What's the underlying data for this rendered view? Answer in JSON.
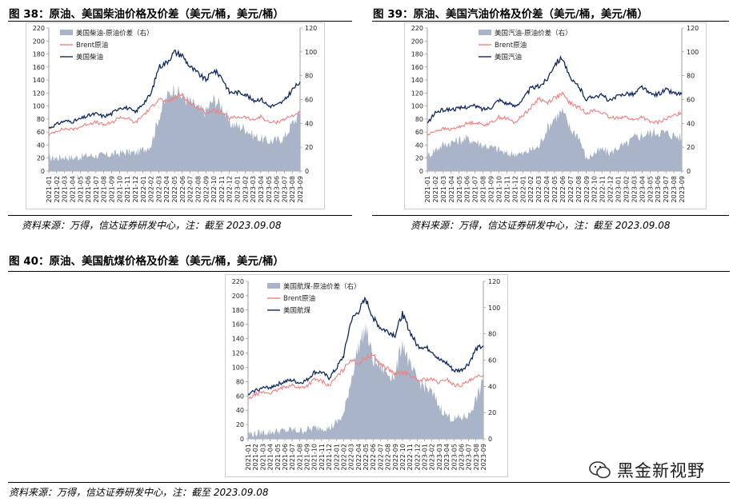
{
  "figures": [
    {
      "title": "图 38：原油、美国柴油价格及价差（美元/桶，美元/桶）",
      "source": "资料来源：万得，信达证券研发中心，注：截至 2023.09.08"
    },
    {
      "title": "图 39：原油、美国汽油价格及价差（美元/桶，美元/桶）",
      "source": "资料来源：万得，信达证券研发中心，注：截至 2023.09.08"
    },
    {
      "title": "图 40：原油、美国航煤价格及价差（美元/桶，美元/桶）",
      "source": "资料来源：万得，信达证券研发中心，注：截至 2023.09.08"
    }
  ],
  "watermark": "黑金新视野",
  "colors": {
    "spread": "#a9b4c8",
    "brent": "#f08080",
    "product": "#102a5e"
  },
  "chart_data": [
    {
      "type": "line",
      "categories": [
        "2021-01",
        "2021-02",
        "2021-03",
        "2021-04",
        "2021-05",
        "2021-06",
        "2021-07",
        "2021-08",
        "2021-09",
        "2021-10",
        "2021-11",
        "2021-12",
        "2022-01",
        "2022-02",
        "2022-03",
        "2022-04",
        "2022-05",
        "2022-06",
        "2022-07",
        "2022-08",
        "2022-09",
        "2022-10",
        "2022-11",
        "2022-12",
        "2023-01",
        "2023-02",
        "2023-03",
        "2023-04",
        "2023-05",
        "2023-06",
        "2023-07",
        "2023-08",
        "2023-09"
      ],
      "ylim": [
        0,
        220
      ],
      "yticks": [
        0,
        20,
        40,
        60,
        80,
        100,
        120,
        140,
        160,
        180,
        200,
        220
      ],
      "y2lim": [
        0,
        120
      ],
      "y2ticks": [
        0,
        20,
        40,
        60,
        80,
        100,
        120
      ],
      "series": [
        {
          "name": "美国柴油-原油价差（右）",
          "kind": "area",
          "axis": "right",
          "values": [
            11,
            11,
            12,
            11,
            12,
            13,
            13,
            13,
            14,
            15,
            16,
            15,
            18,
            22,
            45,
            62,
            70,
            62,
            58,
            52,
            50,
            60,
            55,
            40,
            38,
            36,
            30,
            27,
            25,
            26,
            28,
            40,
            48
          ]
        },
        {
          "name": "Brent原油",
          "kind": "line",
          "axis": "left",
          "values": [
            55,
            62,
            65,
            64,
            68,
            73,
            75,
            71,
            74,
            83,
            81,
            74,
            86,
            97,
            112,
            105,
            113,
            118,
            104,
            98,
            90,
            93,
            90,
            81,
            83,
            83,
            78,
            84,
            75,
            75,
            80,
            85,
            90
          ]
        },
        {
          "name": "美国柴油",
          "kind": "line",
          "axis": "left",
          "values": [
            66,
            72,
            77,
            76,
            80,
            85,
            88,
            84,
            88,
            98,
            97,
            90,
            104,
            118,
            160,
            167,
            183,
            178,
            160,
            150,
            140,
            155,
            145,
            121,
            121,
            119,
            108,
            111,
            100,
            101,
            108,
            125,
            137
          ]
        }
      ]
    },
    {
      "type": "line",
      "categories": [
        "2021-01",
        "2021-02",
        "2021-03",
        "2021-04",
        "2021-05",
        "2021-06",
        "2021-07",
        "2021-08",
        "2021-09",
        "2021-10",
        "2021-11",
        "2021-12",
        "2022-01",
        "2022-02",
        "2022-03",
        "2022-04",
        "2022-05",
        "2022-06",
        "2022-07",
        "2022-08",
        "2022-09",
        "2022-10",
        "2022-11",
        "2022-12",
        "2023-01",
        "2023-02",
        "2023-03",
        "2023-04",
        "2023-05",
        "2023-06",
        "2023-07",
        "2023-08",
        "2023-09"
      ],
      "ylim": [
        0,
        220
      ],
      "yticks": [
        0,
        20,
        40,
        60,
        80,
        100,
        120,
        140,
        160,
        180,
        200,
        220
      ],
      "y2lim": [
        0,
        120
      ],
      "y2ticks": [
        0,
        20,
        40,
        60,
        80,
        100,
        120
      ],
      "series": [
        {
          "name": "美国汽油-原油价差（右）",
          "kind": "area",
          "axis": "right",
          "values": [
            12,
            18,
            22,
            24,
            26,
            27,
            25,
            22,
            20,
            18,
            14,
            15,
            14,
            18,
            20,
            35,
            45,
            50,
            35,
            30,
            10,
            15,
            18,
            15,
            20,
            22,
            28,
            30,
            32,
            33,
            32,
            30,
            28
          ]
        },
        {
          "name": "Brent原油",
          "kind": "line",
          "axis": "left",
          "values": [
            55,
            62,
            65,
            64,
            68,
            73,
            75,
            71,
            74,
            83,
            81,
            74,
            86,
            97,
            112,
            105,
            113,
            118,
            104,
            98,
            90,
            93,
            90,
            81,
            83,
            83,
            78,
            84,
            75,
            75,
            80,
            85,
            90
          ]
        },
        {
          "name": "美国汽油",
          "kind": "line",
          "axis": "left",
          "values": [
            73,
            90,
            94,
            95,
            96,
            99,
            100,
            95,
            98,
            110,
            104,
            100,
            110,
            127,
            130,
            140,
            165,
            175,
            140,
            131,
            110,
            116,
            116,
            108,
            115,
            120,
            118,
            130,
            118,
            118,
            125,
            120,
            118
          ]
        }
      ]
    },
    {
      "type": "line",
      "categories": [
        "2021-01",
        "2021-02",
        "2021-03",
        "2021-04",
        "2021-05",
        "2021-06",
        "2021-07",
        "2021-08",
        "2021-09",
        "2021-10",
        "2021-11",
        "2021-12",
        "2022-01",
        "2022-02",
        "2022-03",
        "2022-04",
        "2022-05",
        "2022-06",
        "2022-07",
        "2022-08",
        "2022-09",
        "2022-10",
        "2022-11",
        "2022-12",
        "2023-01",
        "2023-02",
        "2023-03",
        "2023-04",
        "2023-05",
        "2023-06",
        "2023-07",
        "2023-08",
        "2023-09"
      ],
      "ylim": [
        0,
        220
      ],
      "yticks": [
        0,
        20,
        40,
        60,
        80,
        100,
        120,
        140,
        160,
        180,
        200,
        220
      ],
      "y2lim": [
        0,
        120
      ],
      "y2ticks": [
        0,
        20,
        40,
        60,
        80,
        100,
        120
      ],
      "series": [
        {
          "name": "美国航煤-原油价差（右）",
          "kind": "area",
          "axis": "right",
          "values": [
            4,
            4,
            5,
            5,
            6,
            6,
            7,
            6,
            7,
            8,
            9,
            8,
            12,
            18,
            45,
            70,
            85,
            60,
            55,
            50,
            48,
            75,
            55,
            45,
            40,
            35,
            25,
            18,
            15,
            16,
            18,
            30,
            44
          ]
        },
        {
          "name": "Brent原油",
          "kind": "line",
          "axis": "left",
          "values": [
            55,
            62,
            65,
            64,
            68,
            73,
            75,
            71,
            74,
            83,
            81,
            74,
            86,
            97,
            112,
            105,
            113,
            118,
            104,
            98,
            90,
            93,
            90,
            81,
            83,
            83,
            78,
            84,
            75,
            75,
            80,
            85,
            90
          ]
        },
        {
          "name": "美国航煤",
          "kind": "line",
          "axis": "left",
          "values": [
            61,
            68,
            71,
            72,
            76,
            80,
            82,
            78,
            82,
            93,
            93,
            85,
            98,
            116,
            165,
            178,
            195,
            170,
            155,
            150,
            145,
            175,
            150,
            130,
            128,
            123,
            110,
            106,
            95,
            96,
            105,
            125,
            130
          ]
        }
      ]
    }
  ]
}
